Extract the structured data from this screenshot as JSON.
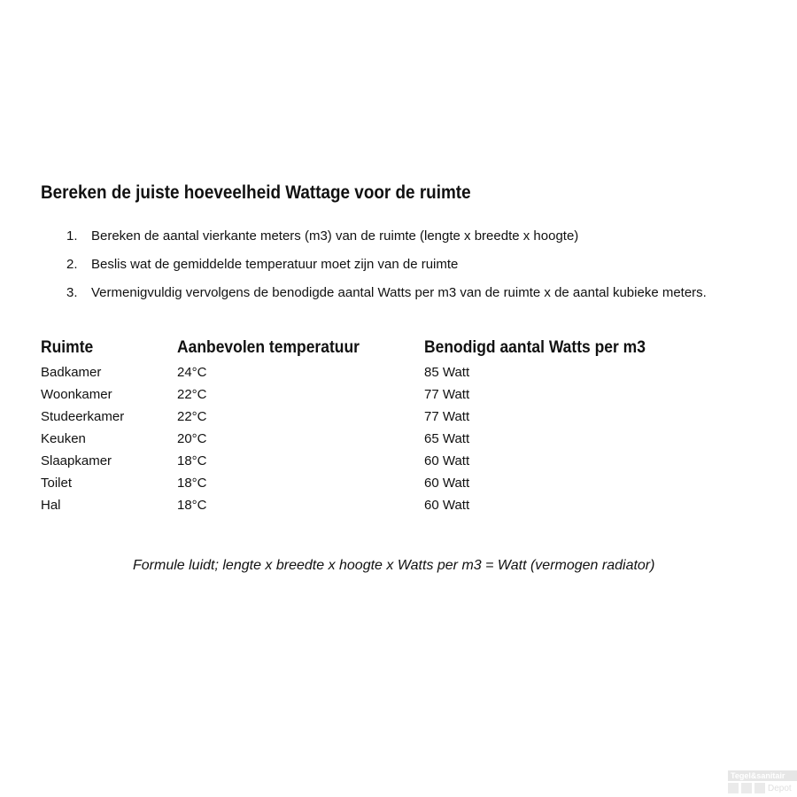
{
  "title": "Bereken de juiste hoeveelheid Wattage voor de ruimte",
  "steps": [
    {
      "num": "1.",
      "text": "Bereken de aantal vierkante meters (m3) van de ruimte (lengte x breedte x hoogte)"
    },
    {
      "num": "2.",
      "text": "Beslis wat de gemiddelde temperatuur moet zijn van de ruimte"
    },
    {
      "num": "3.",
      "text": "Vermenigvuldig vervolgens de benodigde aantal Watts per m3 van de ruimte x de aantal kubieke meters."
    }
  ],
  "table": {
    "headers": [
      "Ruimte",
      "Aanbevolen temperatuur",
      "Benodigd aantal Watts per m3"
    ],
    "rows": [
      [
        "Badkamer",
        "24°C",
        "85 Watt"
      ],
      [
        "Woonkamer",
        "22°C",
        "77 Watt"
      ],
      [
        "Studeerkamer",
        "22°C",
        "77 Watt"
      ],
      [
        "Keuken",
        "20°C",
        "65 Watt"
      ],
      [
        "Slaapkamer",
        "18°C",
        "60 Watt"
      ],
      [
        "Toilet",
        "18°C",
        "60 Watt"
      ],
      [
        "Hal",
        "18°C",
        "60 Watt"
      ]
    ]
  },
  "formula": "Formule luidt; lengte x breedte x hoogte x Watts per m3 = Watt (vermogen radiator)",
  "watermark": {
    "line1": "Tegel&sanitair",
    "line2": "Depot"
  }
}
